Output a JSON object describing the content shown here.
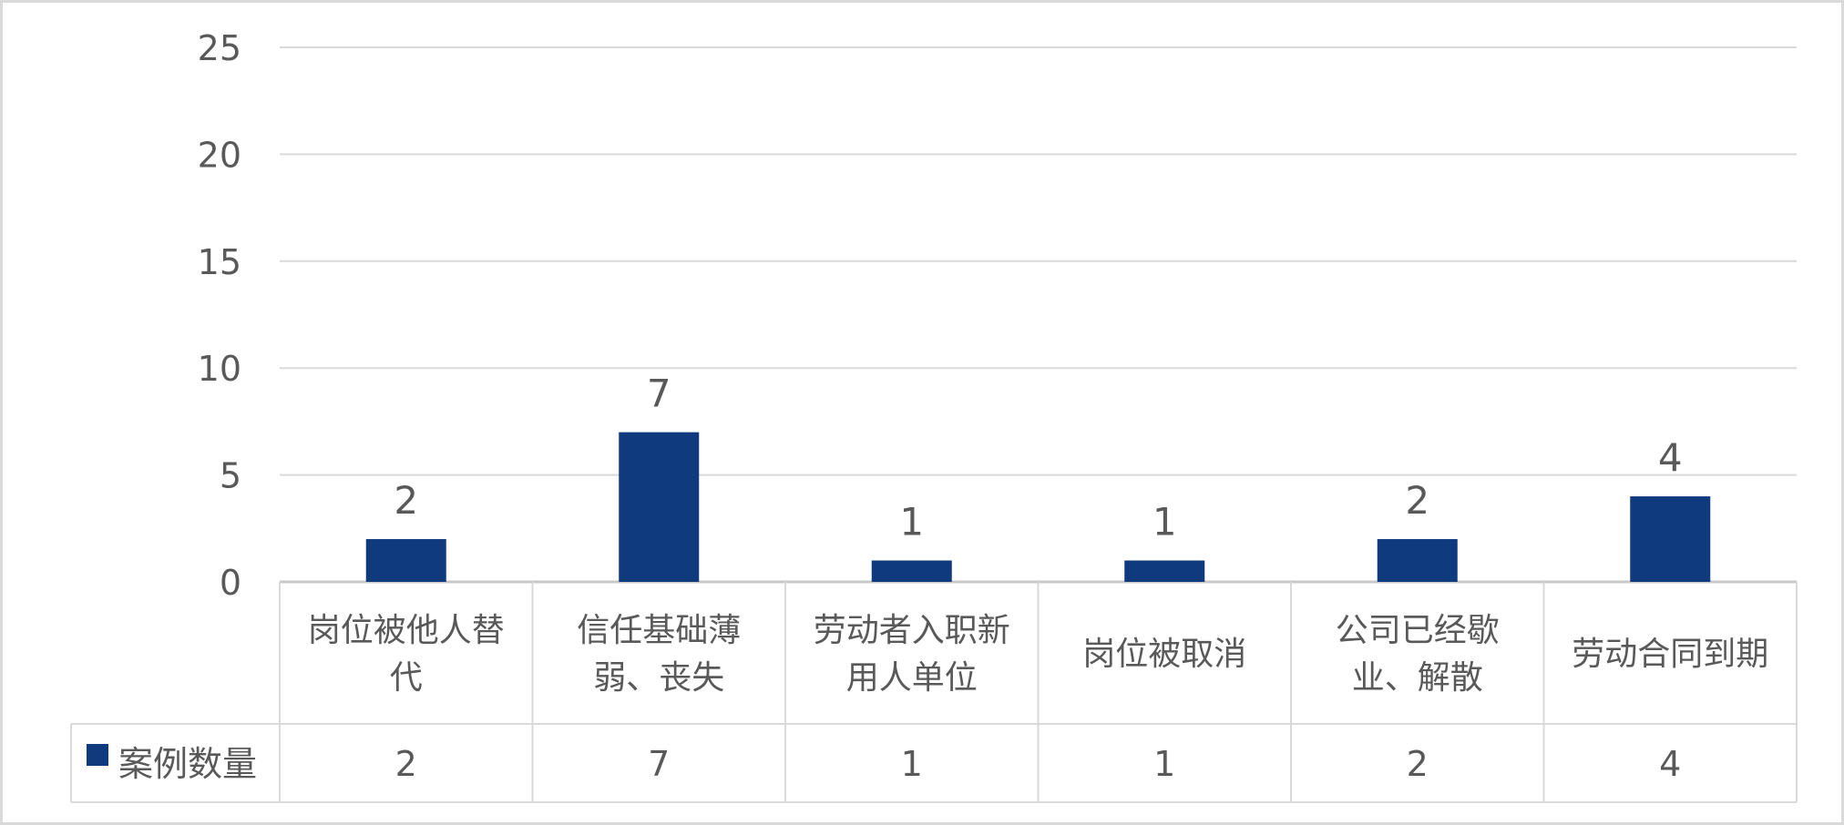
{
  "chart_data": {
    "type": "bar",
    "categories": [
      [
        "岗位被他人替",
        "代"
      ],
      [
        "信任基础薄",
        "弱、丧失"
      ],
      [
        "劳动者入职新",
        "用人单位"
      ],
      [
        "岗位被取消"
      ],
      [
        "公司已经歇",
        "业、解散"
      ],
      [
        "劳动合同到期"
      ]
    ],
    "series": [
      {
        "name": "案例数量",
        "values": [
          2,
          7,
          1,
          1,
          2,
          4
        ],
        "color": "#0f3a7d"
      }
    ],
    "ylim": [
      0,
      25
    ],
    "yticks": [
      0,
      5,
      10,
      15,
      20,
      25
    ],
    "grid": true,
    "data_labels": true,
    "data_table": true,
    "legend": "data-table-left"
  }
}
